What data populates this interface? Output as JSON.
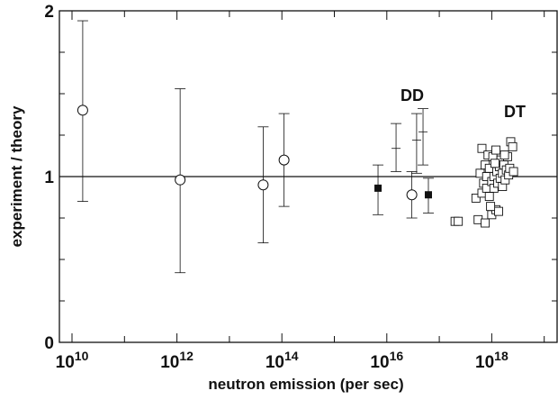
{
  "chart_data": {
    "type": "scatter",
    "x_label": "neutron emission (per sec)",
    "y_label": "experiment / theory",
    "annotations": [
      "DD",
      "DT"
    ],
    "xscale": "log",
    "xlim": [
      5750000000.0,
      1.76e+19
    ],
    "xticks": [
      {
        "value": 10000000000.0,
        "label": "10^10"
      },
      {
        "value": 1000000000000.0,
        "label": "10^12"
      },
      {
        "value": 100000000000000.0,
        "label": "10^14"
      },
      {
        "value": 1e+16,
        "label": "10^16"
      },
      {
        "value": 1e+18,
        "label": "10^18"
      }
    ],
    "xminor_ticks": [
      100000000000.0,
      10000000000000.0,
      1000000000000000.0,
      1e+17,
      1e+19
    ],
    "ylim": [
      0,
      2
    ],
    "yticks": [
      0,
      1,
      2
    ],
    "yminor_ticks": [
      0.25,
      0.5,
      0.75,
      1.25,
      1.5,
      1.75
    ],
    "reference_line": 1,
    "series": [
      {
        "marker": "open-circle",
        "color": "#111111",
        "x": [
          16000000000.0,
          1150000000000.0,
          44000000000000.0,
          110000000000000.0,
          3e+16
        ],
        "values": [
          1.4,
          0.98,
          0.95,
          1.1,
          0.89
        ],
        "y_lower": [
          0.85,
          0.42,
          0.6,
          0.82,
          0.75
        ],
        "y_upper": [
          1.94,
          1.53,
          1.3,
          1.38,
          1.03
        ]
      },
      {
        "marker": "filled-square",
        "color": "#111111",
        "x": [
          6800000000000000.0,
          6.2e+16
        ],
        "values": [
          0.93,
          0.89
        ],
        "y_lower": [
          0.77,
          0.78
        ],
        "y_upper": [
          1.07,
          0.99
        ]
      },
      {
        "marker": "none",
        "color": "#111111",
        "x": [
          1.5e+16,
          3.7e+16,
          4.9e+16
        ],
        "values": [
          1.17,
          1.22,
          1.27
        ],
        "y_lower": [
          1.03,
          1.02,
          1.07
        ],
        "y_upper": [
          1.32,
          1.38,
          1.41
        ]
      },
      {
        "marker": "open-square",
        "color": "#111111",
        "x": [
          2e+17,
          2.3e+17,
          5e+17,
          5.5e+17,
          6e+17,
          6.5e+17,
          6.5e+17,
          7e+17,
          7.5e+17,
          7.5e+17,
          8e+17,
          8e+17,
          8.5e+17,
          9e+17,
          9e+17,
          1e+18,
          1e+18,
          1.05e+18,
          1.1e+18,
          1.1e+18,
          1.2e+18,
          1.2e+18,
          1.25e+18,
          1.3e+18,
          1.35e+18,
          1.4e+18,
          1.45e+18,
          1.5e+18,
          1.6e+18,
          1.6e+18,
          1.7e+18,
          1.8e+18,
          1.9e+18,
          2e+18,
          2.1e+18,
          2.2e+18,
          2.3e+18,
          2.5e+18,
          2.6e+18,
          1.75e+18,
          9.5e+17,
          1.15e+18
        ],
        "values": [
          0.73,
          0.73,
          0.87,
          0.74,
          1.02,
          0.9,
          1.17,
          0.96,
          1.07,
          0.72,
          0.93,
          1.0,
          1.13,
          0.88,
          1.05,
          0.97,
          0.77,
          1.12,
          1.0,
          0.93,
          1.16,
          0.8,
          1.03,
          0.96,
          0.79,
          1.06,
          0.99,
          1.1,
          0.94,
          1.02,
          1.07,
          0.98,
          1.04,
          1.12,
          1.01,
          1.05,
          1.21,
          1.18,
          1.03,
          1.13,
          0.82,
          1.08
        ]
      }
    ]
  }
}
